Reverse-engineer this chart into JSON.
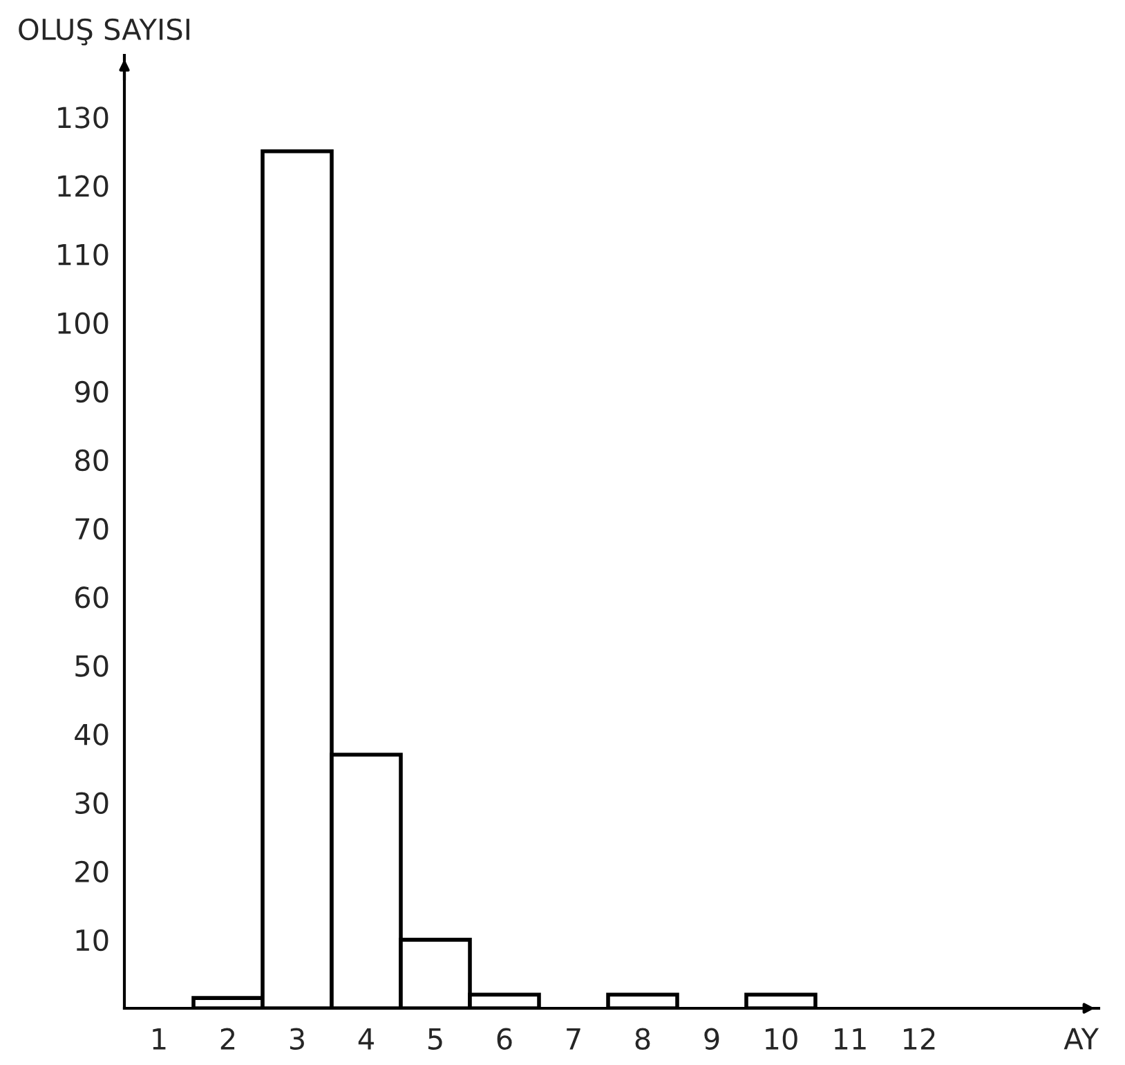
{
  "chart_data": {
    "type": "bar",
    "xlabel": "AY",
    "ylabel": "OLUŞ SAYISI",
    "categories": [
      "1",
      "2",
      "3",
      "4",
      "5",
      "6",
      "7",
      "8",
      "9",
      "10",
      "11",
      "12"
    ],
    "values": [
      0,
      1.5,
      125,
      37,
      10,
      2,
      0,
      2,
      0,
      2,
      0,
      0
    ],
    "color": "#ffffff",
    "ylim": [
      0,
      139
    ],
    "yticks": [
      10,
      20,
      30,
      40,
      50,
      60,
      70,
      80,
      90,
      100,
      110,
      120,
      130
    ],
    "grid": false
  }
}
